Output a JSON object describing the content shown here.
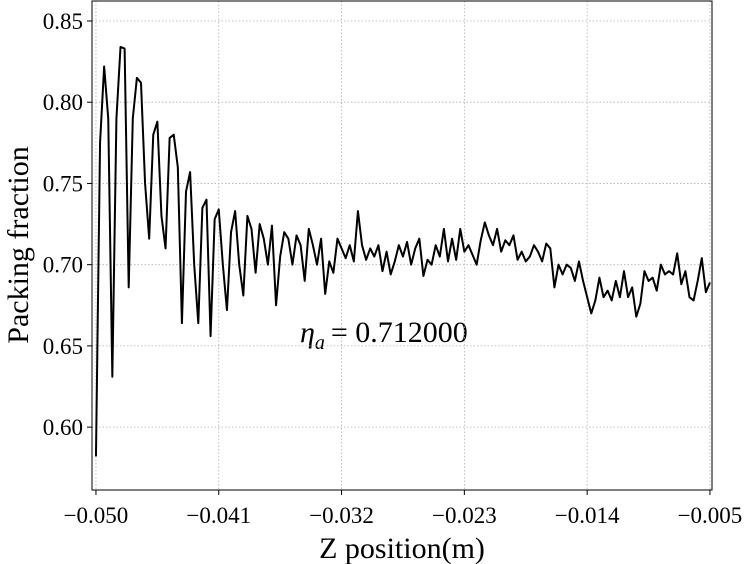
{
  "chart_data": {
    "type": "line",
    "x_label": "Z position(m)",
    "y_label": "Packing fraction",
    "annotation": {
      "symbol": "η",
      "subscript": "a",
      "text": "= 0.712000"
    },
    "x": [
      -0.05,
      -0.0497,
      -0.0494,
      -0.0491,
      -0.0488,
      -0.0485,
      -0.0482,
      -0.0479,
      -0.0476,
      -0.0473,
      -0.047,
      -0.0467,
      -0.0464,
      -0.0461,
      -0.0458,
      -0.0455,
      -0.0452,
      -0.0449,
      -0.0446,
      -0.0443,
      -0.044,
      -0.0437,
      -0.0434,
      -0.0431,
      -0.0428,
      -0.0425,
      -0.0422,
      -0.0419,
      -0.0416,
      -0.0413,
      -0.041,
      -0.0407,
      -0.0404,
      -0.0401,
      -0.0398,
      -0.0395,
      -0.0392,
      -0.0389,
      -0.0386,
      -0.0383,
      -0.038,
      -0.0377,
      -0.0374,
      -0.0371,
      -0.0368,
      -0.0365,
      -0.0362,
      -0.0359,
      -0.0356,
      -0.0353,
      -0.035,
      -0.0347,
      -0.0344,
      -0.0341,
      -0.0338,
      -0.0335,
      -0.0332,
      -0.0329,
      -0.0326,
      -0.0323,
      -0.032,
      -0.0317,
      -0.0314,
      -0.0311,
      -0.0308,
      -0.0305,
      -0.0302,
      -0.0299,
      -0.0296,
      -0.0293,
      -0.029,
      -0.0287,
      -0.0284,
      -0.0281,
      -0.0278,
      -0.0275,
      -0.0272,
      -0.0269,
      -0.0266,
      -0.0263,
      -0.026,
      -0.0257,
      -0.0254,
      -0.0251,
      -0.0248,
      -0.0245,
      -0.0242,
      -0.0239,
      -0.0236,
      -0.0233,
      -0.023,
      -0.0227,
      -0.0224,
      -0.0221,
      -0.0218,
      -0.0215,
      -0.0212,
      -0.0209,
      -0.0206,
      -0.0203,
      -0.02,
      -0.0197,
      -0.0194,
      -0.0191,
      -0.0188,
      -0.0185,
      -0.0182,
      -0.0179,
      -0.0176,
      -0.0173,
      -0.017,
      -0.0167,
      -0.0164,
      -0.0161,
      -0.0158,
      -0.0155,
      -0.0152,
      -0.0149,
      -0.0146,
      -0.0143,
      -0.014,
      -0.0137,
      -0.0134,
      -0.0131,
      -0.0128,
      -0.0125,
      -0.0122,
      -0.0119,
      -0.0116,
      -0.0113,
      -0.011,
      -0.0107,
      -0.0104,
      -0.0101,
      -0.0098,
      -0.0095,
      -0.0092,
      -0.0089,
      -0.0086,
      -0.0083,
      -0.008,
      -0.0077,
      -0.0074,
      -0.0071,
      -0.0068,
      -0.0065,
      -0.0062,
      -0.0059,
      -0.0056,
      -0.0053,
      -0.005
    ],
    "series": [
      {
        "color": "#000000",
        "values": [
          0.582,
          0.775,
          0.822,
          0.79,
          0.631,
          0.79,
          0.834,
          0.833,
          0.686,
          0.79,
          0.815,
          0.812,
          0.75,
          0.716,
          0.78,
          0.788,
          0.73,
          0.71,
          0.778,
          0.78,
          0.76,
          0.664,
          0.745,
          0.757,
          0.7,
          0.664,
          0.735,
          0.74,
          0.656,
          0.728,
          0.734,
          0.7,
          0.672,
          0.72,
          0.733,
          0.7,
          0.681,
          0.73,
          0.722,
          0.695,
          0.725,
          0.716,
          0.7,
          0.724,
          0.675,
          0.705,
          0.72,
          0.716,
          0.7,
          0.718,
          0.712,
          0.69,
          0.722,
          0.712,
          0.7,
          0.716,
          0.682,
          0.702,
          0.695,
          0.716,
          0.71,
          0.704,
          0.712,
          0.702,
          0.733,
          0.712,
          0.703,
          0.71,
          0.705,
          0.712,
          0.696,
          0.708,
          0.694,
          0.702,
          0.712,
          0.705,
          0.714,
          0.7,
          0.71,
          0.716,
          0.693,
          0.703,
          0.7,
          0.712,
          0.705,
          0.722,
          0.702,
          0.716,
          0.703,
          0.722,
          0.708,
          0.712,
          0.706,
          0.7,
          0.715,
          0.726,
          0.718,
          0.712,
          0.722,
          0.708,
          0.715,
          0.712,
          0.718,
          0.703,
          0.708,
          0.702,
          0.705,
          0.712,
          0.708,
          0.702,
          0.713,
          0.71,
          0.686,
          0.7,
          0.694,
          0.7,
          0.698,
          0.69,
          0.702,
          0.69,
          0.68,
          0.67,
          0.678,
          0.692,
          0.68,
          0.684,
          0.678,
          0.69,
          0.68,
          0.696,
          0.68,
          0.686,
          0.668,
          0.676,
          0.696,
          0.69,
          0.692,
          0.684,
          0.7,
          0.694,
          0.696,
          0.694,
          0.707,
          0.688,
          0.696,
          0.68,
          0.678,
          0.69,
          0.704,
          0.683,
          0.689
        ]
      }
    ],
    "xlim": [
      -0.05029,
      -0.00485
    ],
    "ylim": [
      0.5613,
      0.8623
    ],
    "xticks": [
      {
        "value": -0.05,
        "label": "−0.050"
      },
      {
        "value": -0.041,
        "label": "−0.041"
      },
      {
        "value": -0.032,
        "label": "−0.032"
      },
      {
        "value": -0.023,
        "label": "−0.023"
      },
      {
        "value": -0.014,
        "label": "−0.014"
      },
      {
        "value": -0.005,
        "label": "−0.005"
      }
    ],
    "yticks": [
      {
        "value": 0.6,
        "label": "0.60"
      },
      0.65,
      {
        "value": 0.7,
        "label": "0.70"
      },
      0.75,
      {
        "value": 0.8,
        "label": "0.80"
      },
      0.85
    ],
    "grid": true
  }
}
